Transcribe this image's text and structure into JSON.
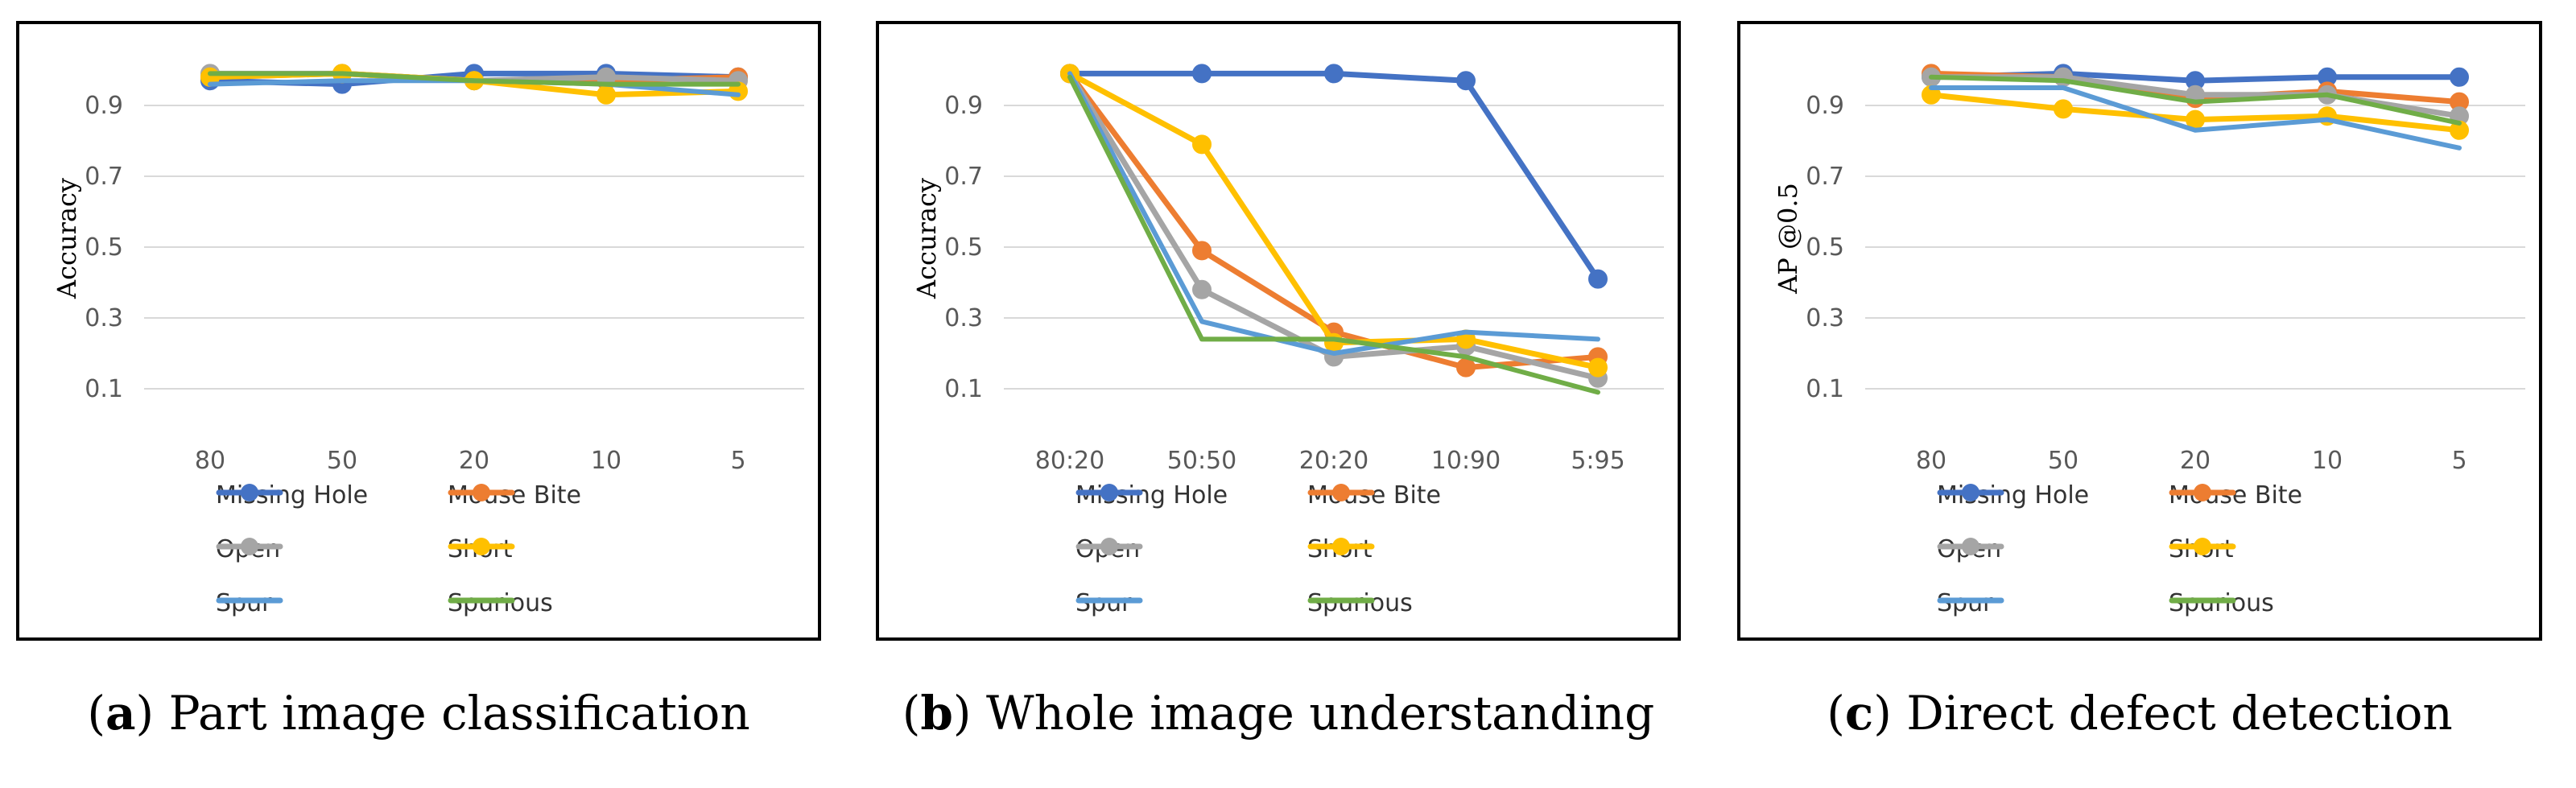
{
  "chart_data": [
    {
      "type": "line",
      "panel_label": "a",
      "caption": "Part image classification",
      "ylabel": "Accuracy",
      "xlabel": "",
      "ylim": [
        0.0,
        1.05
      ],
      "yticks": [
        "0.1",
        "0.3",
        "0.5",
        "0.7",
        "0.9"
      ],
      "grid": true,
      "legend_position": "bottom",
      "categories": [
        "80",
        "50",
        "20",
        "10",
        "5"
      ],
      "series": [
        {
          "name": "Missing Hole",
          "color": "#4472C4",
          "values": [
            0.97,
            0.96,
            0.99,
            0.99,
            0.98
          ]
        },
        {
          "name": "Mouse Bite",
          "color": "#ED7D31",
          "values": [
            0.98,
            0.99,
            0.97,
            0.97,
            0.98
          ]
        },
        {
          "name": "Open",
          "color": "#A5A5A5",
          "values": [
            0.99,
            0.99,
            0.97,
            0.98,
            0.97
          ]
        },
        {
          "name": "Short",
          "color": "#FFC000",
          "values": [
            0.98,
            0.99,
            0.97,
            0.93,
            0.94
          ]
        },
        {
          "name": "Spur",
          "color": "#5B9BD5",
          "values": [
            0.96,
            0.97,
            0.97,
            0.96,
            0.93
          ]
        },
        {
          "name": "Spurious",
          "color": "#70AD47",
          "values": [
            0.99,
            0.99,
            0.97,
            0.96,
            0.96
          ]
        }
      ]
    },
    {
      "type": "line",
      "panel_label": "b",
      "caption": "Whole image understanding",
      "ylabel": "Accuracy",
      "xlabel": "",
      "ylim": [
        0.0,
        1.05
      ],
      "yticks": [
        "0.1",
        "0.3",
        "0.5",
        "0.7",
        "0.9"
      ],
      "grid": true,
      "legend_position": "bottom",
      "categories": [
        "80:20",
        "50:50",
        "20:20",
        "10:90",
        "5:95"
      ],
      "series": [
        {
          "name": "Missing Hole",
          "color": "#4472C4",
          "values": [
            0.99,
            0.99,
            0.99,
            0.97,
            0.41
          ]
        },
        {
          "name": "Mouse Bite",
          "color": "#ED7D31",
          "values": [
            0.99,
            0.49,
            0.26,
            0.16,
            0.19
          ]
        },
        {
          "name": "Open",
          "color": "#A5A5A5",
          "values": [
            0.99,
            0.38,
            0.19,
            0.22,
            0.13
          ]
        },
        {
          "name": "Short",
          "color": "#FFC000",
          "values": [
            0.99,
            0.79,
            0.23,
            0.24,
            0.16
          ]
        },
        {
          "name": "Spur",
          "color": "#5B9BD5",
          "values": [
            0.99,
            0.29,
            0.2,
            0.26,
            0.24
          ]
        },
        {
          "name": "Spurious",
          "color": "#70AD47",
          "values": [
            0.98,
            0.24,
            0.24,
            0.19,
            0.09
          ]
        }
      ]
    },
    {
      "type": "line",
      "panel_label": "c",
      "caption": "Direct defect detection",
      "ylabel": "AP @0.5",
      "xlabel": "",
      "ylim": [
        0.0,
        1.05
      ],
      "yticks": [
        "0.1",
        "0.3",
        "0.5",
        "0.7",
        "0.9"
      ],
      "grid": true,
      "legend_position": "bottom",
      "categories": [
        "80",
        "50",
        "20",
        "10",
        "5"
      ],
      "series": [
        {
          "name": "Missing Hole",
          "color": "#4472C4",
          "values": [
            0.98,
            0.99,
            0.97,
            0.98,
            0.98
          ]
        },
        {
          "name": "Mouse Bite",
          "color": "#ED7D31",
          "values": [
            0.99,
            0.98,
            0.92,
            0.94,
            0.91
          ]
        },
        {
          "name": "Open",
          "color": "#A5A5A5",
          "values": [
            0.98,
            0.98,
            0.93,
            0.93,
            0.87
          ]
        },
        {
          "name": "Short",
          "color": "#FFC000",
          "values": [
            0.93,
            0.89,
            0.86,
            0.87,
            0.83
          ]
        },
        {
          "name": "Spur",
          "color": "#5B9BD5",
          "values": [
            0.95,
            0.95,
            0.83,
            0.86,
            0.78
          ]
        },
        {
          "name": "Spurious",
          "color": "#70AD47",
          "values": [
            0.98,
            0.97,
            0.91,
            0.93,
            0.85
          ]
        }
      ]
    }
  ]
}
